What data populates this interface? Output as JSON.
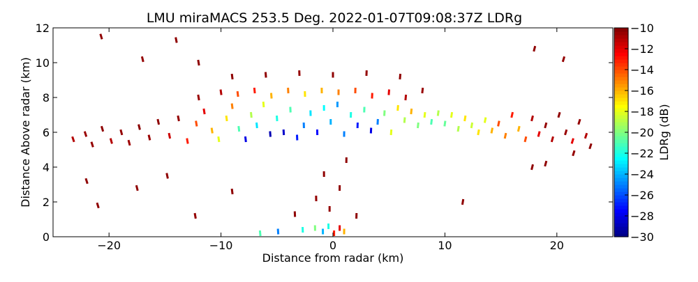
{
  "chart_data": {
    "type": "scatter",
    "title": "LMU miraMACS 253.5 Deg. 2022-01-07T09:08:37Z  LDRg",
    "xlabel": "Distance from radar (km)",
    "ylabel": "Distance Above radar  (km)",
    "xlim": [
      -25,
      25
    ],
    "ylim": [
      0,
      12
    ],
    "x_ticks": [
      -20,
      -10,
      0,
      10,
      20
    ],
    "x_tick_labels": [
      "−20",
      "−10",
      "0",
      "10",
      "20"
    ],
    "y_ticks": [
      0,
      2,
      4,
      6,
      8,
      10,
      12
    ],
    "y_tick_labels": [
      "0",
      "2",
      "4",
      "6",
      "8",
      "10",
      "12"
    ],
    "colorbar": {
      "label": "LDRg (dB)",
      "range": [
        -30,
        -10
      ],
      "ticks": [
        -30,
        -28,
        -26,
        -24,
        -22,
        -20,
        -18,
        -16,
        -14,
        -12,
        -10
      ],
      "tick_labels": [
        "−30",
        "−28",
        "−26",
        "−24",
        "−22",
        "−20",
        "−18",
        "−16",
        "−14",
        "−12",
        "−10"
      ],
      "colormap": "jet"
    },
    "series": [
      {
        "name": "LDRg",
        "units": "dB",
        "points": [
          [
            -23.2,
            5.6,
            -11
          ],
          [
            -22.1,
            5.9,
            -10.5
          ],
          [
            -21.5,
            5.3,
            -10.4
          ],
          [
            -20.6,
            6.2,
            -10.3
          ],
          [
            -19.8,
            5.5,
            -11
          ],
          [
            -18.9,
            6.0,
            -10.4
          ],
          [
            -18.2,
            5.4,
            -10.6
          ],
          [
            -17.3,
            6.3,
            -10.2
          ],
          [
            -16.4,
            5.7,
            -10.5
          ],
          [
            -15.6,
            6.6,
            -10.3
          ],
          [
            -14.6,
            5.8,
            -11.5
          ],
          [
            -13.8,
            6.8,
            -10.4
          ],
          [
            -13.0,
            5.5,
            -13
          ],
          [
            -12.2,
            6.5,
            -14
          ],
          [
            -11.5,
            7.2,
            -12
          ],
          [
            -10.8,
            6.1,
            -16
          ],
          [
            -10.2,
            5.6,
            -18
          ],
          [
            -9.5,
            6.8,
            -17
          ],
          [
            -9.0,
            7.5,
            -15
          ],
          [
            -8.4,
            6.2,
            -21
          ],
          [
            -7.8,
            5.6,
            -28
          ],
          [
            -7.3,
            7.0,
            -19
          ],
          [
            -6.8,
            6.4,
            -23
          ],
          [
            -6.2,
            7.6,
            -18
          ],
          [
            -5.6,
            5.9,
            -29
          ],
          [
            -5.0,
            6.8,
            -22
          ],
          [
            -4.4,
            6.0,
            -28.5
          ],
          [
            -3.8,
            7.3,
            -21
          ],
          [
            -3.2,
            5.7,
            -27
          ],
          [
            -2.6,
            6.4,
            -25
          ],
          [
            -2.0,
            7.1,
            -23
          ],
          [
            -1.4,
            6.0,
            -27.5
          ],
          [
            -0.8,
            7.4,
            -22.5
          ],
          [
            -0.2,
            6.6,
            -24
          ],
          [
            0.4,
            7.6,
            -24.5
          ],
          [
            1.0,
            5.9,
            -25
          ],
          [
            1.6,
            7.0,
            -22
          ],
          [
            2.2,
            6.4,
            -27
          ],
          [
            2.8,
            7.3,
            -21
          ],
          [
            3.4,
            6.1,
            -28
          ],
          [
            4.0,
            6.6,
            -25
          ],
          [
            4.6,
            7.1,
            -20
          ],
          [
            5.2,
            6.0,
            -18
          ],
          [
            5.8,
            7.4,
            -17
          ],
          [
            6.4,
            6.7,
            -19
          ],
          [
            7.0,
            7.2,
            -16
          ],
          [
            7.6,
            6.4,
            -20
          ],
          [
            8.2,
            7.0,
            -18
          ],
          [
            8.8,
            6.6,
            -21
          ],
          [
            9.4,
            7.1,
            -19
          ],
          [
            10.0,
            6.5,
            -20.5
          ],
          [
            10.6,
            7.0,
            -18
          ],
          [
            11.2,
            6.2,
            -19
          ],
          [
            11.8,
            6.8,
            -17
          ],
          [
            12.4,
            6.4,
            -18.5
          ],
          [
            13.0,
            6.0,
            -17
          ],
          [
            13.6,
            6.7,
            -18
          ],
          [
            14.2,
            6.1,
            -16
          ],
          [
            14.8,
            6.5,
            -14
          ],
          [
            15.4,
            5.8,
            -15
          ],
          [
            16.0,
            7.0,
            -13
          ],
          [
            16.6,
            6.2,
            -16
          ],
          [
            17.2,
            5.6,
            -14
          ],
          [
            17.8,
            6.8,
            -11
          ],
          [
            18.4,
            5.9,
            -12
          ],
          [
            19.0,
            6.4,
            -10.4
          ],
          [
            19.6,
            5.6,
            -11
          ],
          [
            20.2,
            7.0,
            -10.3
          ],
          [
            20.8,
            6.0,
            -10.5
          ],
          [
            21.4,
            5.5,
            -12
          ],
          [
            22.0,
            6.6,
            -10.4
          ],
          [
            22.6,
            5.8,
            -11
          ],
          [
            23.0,
            5.2,
            -10.3
          ],
          [
            -12.0,
            8.0,
            -10.5
          ],
          [
            -10.0,
            8.3,
            -11
          ],
          [
            -8.5,
            8.2,
            -14
          ],
          [
            -7.0,
            8.4,
            -13
          ],
          [
            -5.5,
            8.1,
            -16
          ],
          [
            -4.0,
            8.4,
            -15
          ],
          [
            -2.5,
            8.2,
            -17
          ],
          [
            -1.0,
            8.4,
            -16
          ],
          [
            0.5,
            8.3,
            -15
          ],
          [
            2.0,
            8.4,
            -14
          ],
          [
            3.5,
            8.1,
            -13
          ],
          [
            5.0,
            8.3,
            -12
          ],
          [
            6.5,
            8.0,
            -11
          ],
          [
            8.0,
            8.4,
            -10.5
          ],
          [
            -9.0,
            9.2,
            -10.3
          ],
          [
            -6.0,
            9.3,
            -10.3
          ],
          [
            -3.0,
            9.4,
            -10.4
          ],
          [
            0.0,
            9.3,
            -10.3
          ],
          [
            3.0,
            9.4,
            -10.4
          ],
          [
            6.0,
            9.2,
            -10.3
          ],
          [
            -20.7,
            11.5,
            -10.3
          ],
          [
            -17.0,
            10.2,
            -10.4
          ],
          [
            -14.0,
            11.3,
            -10.3
          ],
          [
            -12.0,
            10.0,
            -10.3
          ],
          [
            18.0,
            10.8,
            -10.3
          ],
          [
            20.6,
            10.2,
            -10.4
          ],
          [
            -22.0,
            3.2,
            -10.3
          ],
          [
            -21.0,
            1.8,
            -10.3
          ],
          [
            -17.5,
            2.8,
            -10.3
          ],
          [
            -14.8,
            3.5,
            -10.3
          ],
          [
            -12.3,
            1.2,
            -10.4
          ],
          [
            -9.0,
            2.6,
            -10.3
          ],
          [
            17.8,
            4.0,
            -10.3
          ],
          [
            19.0,
            4.2,
            -10.3
          ],
          [
            21.5,
            4.8,
            -10.4
          ],
          [
            11.6,
            2.0,
            -10.3
          ],
          [
            -1.6,
            0.5,
            -20
          ],
          [
            -0.9,
            0.3,
            -24
          ],
          [
            -0.4,
            0.6,
            -22
          ],
          [
            0.1,
            0.2,
            -13
          ],
          [
            0.6,
            0.5,
            -12
          ],
          [
            1.0,
            0.3,
            -16
          ],
          [
            -6.5,
            0.2,
            -21
          ],
          [
            -4.9,
            0.3,
            -25
          ],
          [
            -2.7,
            0.4,
            -22
          ],
          [
            -0.3,
            1.6,
            -10.4
          ],
          [
            0.6,
            2.8,
            -10.3
          ],
          [
            -0.8,
            3.6,
            -10.3
          ],
          [
            1.2,
            4.4,
            -10.3
          ],
          [
            -1.5,
            2.2,
            -10.4
          ],
          [
            2.1,
            1.2,
            -10.3
          ],
          [
            -3.4,
            1.3,
            -10.3
          ]
        ]
      }
    ]
  }
}
